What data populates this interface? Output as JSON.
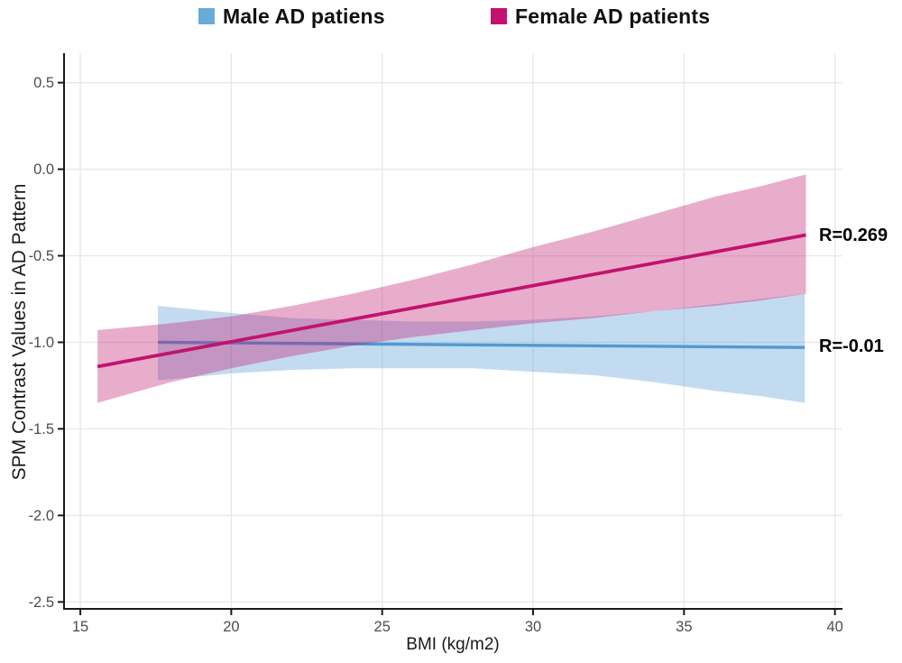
{
  "legend": {
    "position": "top",
    "items": [
      {
        "label": "Male AD patiens",
        "color": "#6aaad9"
      },
      {
        "label": "Female AD patients",
        "color": "#c1136e"
      }
    ]
  },
  "chart_data": {
    "type": "line",
    "title": "",
    "xlabel": "BMI (kg/m2)",
    "ylabel": "SPM Contrast Values in AD Pattern",
    "xlim": [
      14.46,
      40.25
    ],
    "ylim": [
      -2.54,
      0.67
    ],
    "x_ticks": [
      15,
      20,
      25,
      30,
      35,
      40
    ],
    "x_tick_labels": [
      "15",
      "20",
      "25",
      "30",
      "35",
      "40"
    ],
    "y_ticks": [
      0.5,
      0.0,
      -0.5,
      -1.0,
      -1.5,
      -2.0,
      -2.5
    ],
    "y_tick_labels": [
      "0.5",
      "0.0",
      "-0.5",
      "-1.0",
      "-1.5",
      "-2.0",
      "-2.5"
    ],
    "grid": true,
    "grid_color": "#e8e8e8",
    "axis_color": "#1a1a1a",
    "tick_label_color": "#4d4d4d",
    "series": [
      {
        "name": "Male AD patiens",
        "kind": "regression-line-with-ci",
        "line_color": "#5299d3",
        "band_color": "#5299d3",
        "band_opacity": 0.35,
        "line_width": 3.4,
        "r_value": -0.01,
        "annotation": "R=-0.01",
        "line": {
          "x": [
            17.57,
            39.0
          ],
          "y": [
            -1.0,
            -1.03
          ]
        },
        "ribbon": {
          "x": [
            17.57,
            20,
            22,
            24,
            26,
            28,
            30,
            32,
            34,
            36,
            37.5,
            39.0
          ],
          "hi": [
            -0.79,
            -0.83,
            -0.86,
            -0.87,
            -0.88,
            -0.88,
            -0.87,
            -0.85,
            -0.82,
            -0.78,
            -0.75,
            -0.72
          ],
          "lo": [
            -1.22,
            -1.18,
            -1.16,
            -1.15,
            -1.15,
            -1.15,
            -1.17,
            -1.19,
            -1.23,
            -1.28,
            -1.31,
            -1.35
          ]
        }
      },
      {
        "name": "Female AD patients",
        "kind": "regression-line-with-ci",
        "line_color": "#c1136e",
        "band_color": "#c1136e",
        "band_opacity": 0.35,
        "line_width": 3.8,
        "r_value": 0.269,
        "annotation": "R=0.269",
        "line": {
          "x": [
            15.57,
            39.04
          ],
          "y": [
            -1.14,
            -0.38
          ]
        },
        "ribbon": {
          "x": [
            15.57,
            18,
            20,
            22,
            24,
            26,
            28,
            30,
            32,
            34,
            36,
            37.5,
            39.04
          ],
          "hi": [
            -0.93,
            -0.89,
            -0.85,
            -0.79,
            -0.72,
            -0.64,
            -0.55,
            -0.45,
            -0.36,
            -0.26,
            -0.16,
            -0.1,
            -0.03
          ],
          "lo": [
            -1.35,
            -1.23,
            -1.15,
            -1.08,
            -1.02,
            -0.97,
            -0.93,
            -0.89,
            -0.86,
            -0.82,
            -0.79,
            -0.76,
            -0.72
          ]
        }
      }
    ]
  }
}
